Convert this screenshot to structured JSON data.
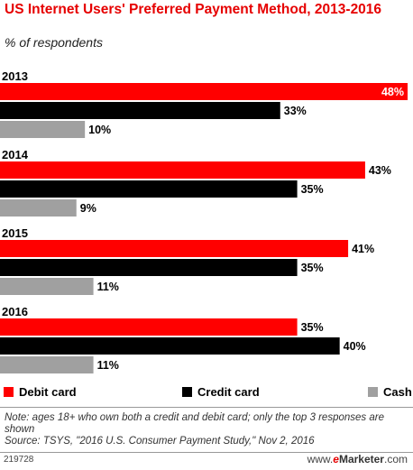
{
  "title": "US Internet Users' Preferred Payment Method, 2013-2016",
  "subtitle": "% of respondents",
  "colors": {
    "debit": "#ff0000",
    "credit": "#000000",
    "cash": "#a0a0a0"
  },
  "chart_data": {
    "type": "bar",
    "orientation": "horizontal",
    "categories": [
      "2013",
      "2014",
      "2015",
      "2016"
    ],
    "series": [
      {
        "name": "Debit card",
        "values": [
          48,
          43,
          41,
          35
        ],
        "color": "#ff0000"
      },
      {
        "name": "Credit card",
        "values": [
          33,
          35,
          35,
          40
        ],
        "color": "#000000"
      },
      {
        "name": "Cash",
        "values": [
          10,
          9,
          11,
          11
        ],
        "color": "#a0a0a0"
      }
    ],
    "value_suffix": "%",
    "xlim": [
      0,
      48
    ],
    "grid": false,
    "legend": "bottom"
  },
  "legend": [
    {
      "label": "Debit card",
      "color": "#ff0000"
    },
    {
      "label": "Credit card",
      "color": "#000000"
    },
    {
      "label": "Cash",
      "color": "#a0a0a0"
    }
  ],
  "note": "Note: ages 18+ who own both a credit and debit card; only the top 3 responses are shown",
  "source": "Source: TSYS, \"2016 U.S. Consumer Payment Study,\" Nov 2, 2016",
  "footer": {
    "id": "219728",
    "brand_prefix": "www.",
    "brand_e": "e",
    "brand_name": "Marketer",
    "brand_suffix": ".com"
  }
}
